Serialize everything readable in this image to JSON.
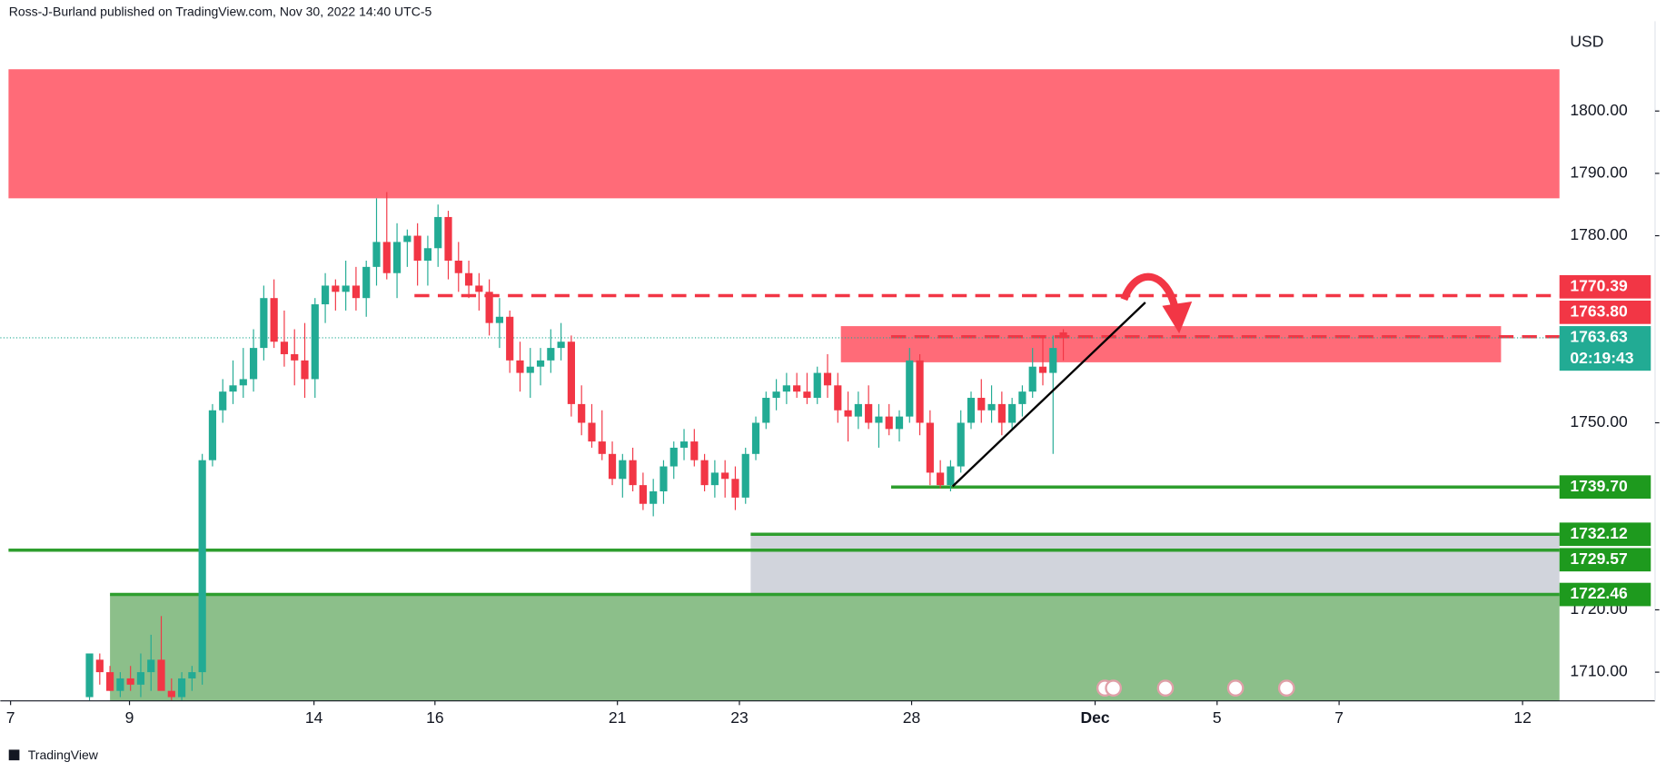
{
  "chart_data": {
    "type": "candlestick",
    "title": "Ross-J-Burland published on TradingView.com, Nov 30, 2022 14:40 UTC-5",
    "currency": "USD",
    "brand": "TradingView",
    "up_color": "#22ab94",
    "down_color": "#f23645",
    "xlim": [
      -8.7,
      143.4
    ],
    "ylim": [
      1705.4,
      1814.4
    ],
    "xticks": [
      {
        "value": -7.7,
        "label": "7"
      },
      {
        "value": 3.9,
        "label": "9"
      },
      {
        "value": 21.9,
        "label": "14"
      },
      {
        "value": 33.7,
        "label": "16"
      },
      {
        "value": 51.5,
        "label": "21"
      },
      {
        "value": 63.4,
        "label": "23"
      },
      {
        "value": 80.2,
        "label": "28"
      },
      {
        "value": 98.1,
        "label": "Dec"
      },
      {
        "value": 110,
        "label": "5"
      },
      {
        "value": 121.9,
        "label": "7"
      },
      {
        "value": 139.8,
        "label": "12"
      }
    ],
    "yticks": [
      {
        "value": 1710,
        "label": "1710.00"
      },
      {
        "value": 1720,
        "label": "1720.00"
      },
      {
        "value": 1750,
        "label": "1750.00"
      },
      {
        "value": 1780,
        "label": "1780.00"
      },
      {
        "value": 1790,
        "label": "1790.00"
      },
      {
        "value": 1800,
        "label": "1800.00"
      }
    ],
    "open": [
      1706,
      1712,
      1710,
      1707,
      1709,
      1708,
      1710,
      1712,
      1707,
      1706,
      1709,
      1710,
      1744,
      1752,
      1755,
      1756,
      1757,
      1762,
      1770,
      1763,
      1761,
      1760,
      1757,
      1769,
      1772,
      1771,
      1772,
      1770,
      1775,
      1779,
      1774,
      1779,
      1780,
      1776,
      1778,
      1783,
      1776,
      1774,
      1772,
      1771,
      1766,
      1767,
      1760,
      1758,
      1759,
      1760,
      1762,
      1763,
      1753,
      1750,
      1747,
      1745,
      1741,
      1744,
      1740,
      1737,
      1739,
      1743,
      1746,
      1747,
      1744,
      1740,
      1742,
      1741,
      1738,
      1745,
      1750,
      1754,
      1755,
      1756,
      1755,
      1754,
      1758,
      1756,
      1752,
      1751,
      1753,
      1750,
      1751,
      1749,
      1751,
      1760,
      1750,
      1742,
      1740,
      1743,
      1750,
      1754,
      1752,
      1753,
      1750,
      1753,
      1755,
      1759,
      1758,
      1764.5
    ],
    "high": [
      1713,
      1713,
      1711,
      1710,
      1711,
      1713,
      1716,
      1719,
      1709,
      1710,
      1711,
      1745,
      1753,
      1757,
      1760,
      1762,
      1765,
      1772,
      1773,
      1768,
      1765,
      1766,
      1770,
      1774,
      1773,
      1776,
      1775,
      1776,
      1786,
      1787,
      1782,
      1781,
      1782,
      1780,
      1785,
      1784,
      1779,
      1776,
      1774,
      1773,
      1770,
      1768,
      1763,
      1762,
      1762,
      1765,
      1766,
      1764,
      1756,
      1753,
      1752,
      1747,
      1745,
      1746,
      1742,
      1741,
      1744,
      1747,
      1749,
      1749,
      1745,
      1744,
      1744,
      1743,
      1746,
      1751,
      1755,
      1757,
      1758,
      1758,
      1758,
      1759,
      1761,
      1758,
      1755,
      1755,
      1756,
      1753,
      1753,
      1752,
      1762,
      1761,
      1752,
      1744,
      1744,
      1752,
      1755,
      1757,
      1756,
      1755,
      1754,
      1756,
      1762,
      1764,
      1764,
      1765
    ],
    "low": [
      1705.5,
      1708,
      1707,
      1706,
      1707,
      1706,
      1707,
      1708,
      1705.5,
      1705.5,
      1707,
      1708,
      1743,
      1750,
      1753,
      1754,
      1755,
      1760,
      1762,
      1759,
      1756,
      1754,
      1754,
      1766,
      1768,
      1768,
      1768,
      1767,
      1772,
      1773,
      1770,
      1775,
      1772,
      1772,
      1775,
      1773,
      1771,
      1770,
      1768,
      1764,
      1762,
      1758,
      1755,
      1754,
      1756,
      1758,
      1760,
      1751,
      1748,
      1746,
      1744,
      1740,
      1738,
      1739,
      1736,
      1735,
      1737,
      1741,
      1744,
      1743,
      1739,
      1738,
      1738,
      1736,
      1737,
      1744,
      1749,
      1752,
      1753,
      1754,
      1753,
      1753,
      1754,
      1750,
      1747,
      1749,
      1749,
      1746,
      1748,
      1747,
      1750,
      1748,
      1740,
      1739.5,
      1739,
      1742,
      1749,
      1750,
      1750,
      1748,
      1749,
      1751,
      1754,
      1756,
      1745,
      1760
    ],
    "close": [
      1713,
      1710,
      1707,
      1709,
      1708,
      1710,
      1712,
      1707,
      1706,
      1709,
      1710,
      1744,
      1752,
      1755,
      1756,
      1757,
      1762,
      1770,
      1763,
      1761,
      1760,
      1757,
      1769,
      1772,
      1771,
      1772,
      1770,
      1775,
      1779,
      1774,
      1779,
      1780,
      1776,
      1778,
      1783,
      1776,
      1774,
      1772,
      1771,
      1766,
      1767,
      1760,
      1758,
      1759,
      1760,
      1762,
      1763,
      1753,
      1750,
      1747,
      1745,
      1741,
      1744,
      1740,
      1737,
      1739,
      1743,
      1746,
      1747,
      1744,
      1740,
      1742,
      1741,
      1738,
      1745,
      1750,
      1754,
      1755,
      1756,
      1755,
      1754,
      1758,
      1756,
      1752,
      1751,
      1753,
      1750,
      1751,
      1749,
      1751,
      1760,
      1750,
      1742,
      1740,
      1743,
      1750,
      1754,
      1752,
      1753,
      1750,
      1753,
      1755,
      1759,
      1758,
      1762,
      1763.63
    ],
    "zones": [
      {
        "from_x": -7.9,
        "to_x": 143.4,
        "low": 1786,
        "high": 1806.7,
        "color": "#ff6b78"
      },
      {
        "from_x": 73.3,
        "to_x": 137.7,
        "low": 1759.7,
        "high": 1765.5,
        "color": "#ff6b78"
      },
      {
        "from_x": 64.5,
        "to_x": 143.4,
        "low": 1722.46,
        "high": 1732.12,
        "color": "#d1d4dc"
      },
      {
        "from_x": 2,
        "to_x": 143.4,
        "low": 1700,
        "high": 1722.46,
        "color": "#8cbf8a"
      }
    ],
    "levels": [
      {
        "value": 1770.39,
        "label": "1770.39",
        "from_x": 31.7,
        "color": "#f23645",
        "style": "dashed"
      },
      {
        "value": 1763.8,
        "label": "1763.80",
        "from_x": 78.2,
        "color": "#f23645",
        "style": "dashed"
      },
      {
        "value": 1763.63,
        "label": "1763.63",
        "countdown": "02:19:43",
        "from_x": -8.7,
        "color": "#22ab94",
        "style": "dotted",
        "current": true
      },
      {
        "value": 1739.7,
        "label": "1739.70",
        "from_x": 78.2,
        "color": "#2e9e2e",
        "style": "solid"
      },
      {
        "value": 1732.12,
        "label": "1732.12",
        "from_x": 64.5,
        "color": "#2e9e2e",
        "style": "solid"
      },
      {
        "value": 1729.57,
        "label": "1729.57",
        "from_x": -7.9,
        "color": "#2e9e2e",
        "style": "solid"
      },
      {
        "value": 1722.46,
        "label": "1722.46",
        "from_x": 2,
        "color": "#2e9e2e",
        "style": "solid"
      }
    ],
    "trendline": {
      "x": [
        84.2,
        103
      ],
      "y": [
        1739.8,
        1769.3
      ],
      "color": "#000000"
    }
  }
}
